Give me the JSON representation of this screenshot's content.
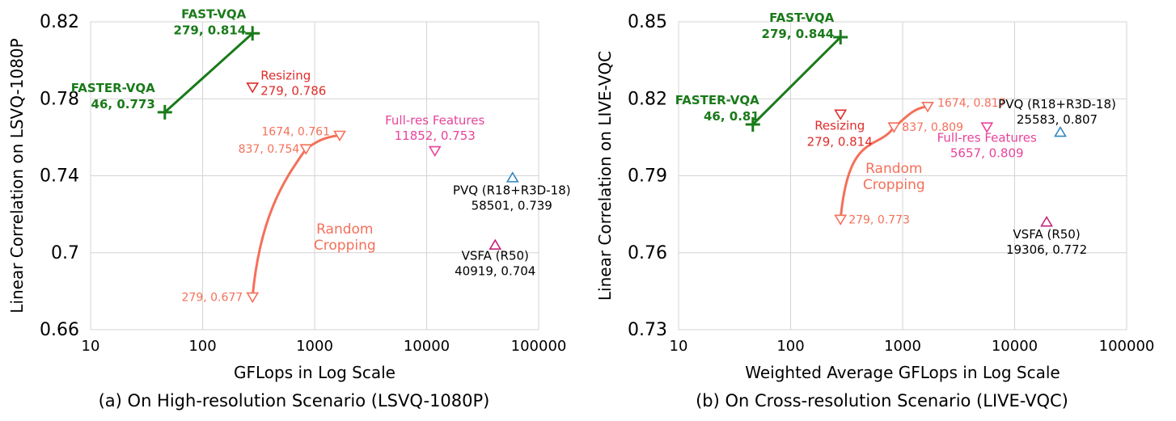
{
  "chart_data": [
    {
      "type": "scatter",
      "caption": "(a) On High-resolution Scenario (LSVQ-1080P)",
      "xlabel": "GFLops in Log Scale",
      "ylabel": "Linear Correlation on LSVQ-1080P",
      "x_scale": "log",
      "xlim": [
        10,
        100000
      ],
      "ylim": [
        0.66,
        0.82
      ],
      "x_ticks": [
        "10",
        "100",
        "1000",
        "10000",
        "100000"
      ],
      "y_ticks": [
        "0.82",
        "0.78",
        "0.74",
        "0.7",
        "0.66"
      ],
      "grid": true,
      "colors": {
        "fast": "#1a7a1a",
        "resizing": "#e02b2b",
        "cropping": "#f4705a",
        "fullres": "#e8439a",
        "pvq": "#2e86c1",
        "vsfa": "#c2247a"
      },
      "series": [
        {
          "name_lines": [
            "FAST-VQA",
            "279, 0.814"
          ],
          "color_key": "fast",
          "marker": "plus",
          "points": [
            {
              "x": 279,
              "y": 0.814,
              "label": "279, 0.814"
            }
          ]
        },
        {
          "name_lines": [
            "FASTER-VQA",
            "46, 0.773"
          ],
          "color_key": "fast",
          "marker": "plus",
          "points": [
            {
              "x": 46,
              "y": 0.773,
              "label": "46, 0.773"
            }
          ]
        },
        {
          "name_lines": [
            "Resizing",
            "279, 0.786"
          ],
          "color_key": "resizing",
          "marker": "tri-down",
          "points": [
            {
              "x": 279,
              "y": 0.786
            }
          ]
        },
        {
          "name_lines": [
            "Random",
            "Cropping"
          ],
          "color_key": "cropping",
          "marker": "tri-down",
          "points": [
            {
              "x": 279,
              "y": 0.677,
              "label": "279, 0.677"
            },
            {
              "x": 837,
              "y": 0.754,
              "label": "837, 0.754"
            },
            {
              "x": 1674,
              "y": 0.761,
              "label": "1674, 0.761"
            }
          ]
        },
        {
          "name_lines": [
            "Full-res Features",
            "11852, 0.753"
          ],
          "color_key": "fullres",
          "marker": "tri-down",
          "points": [
            {
              "x": 11852,
              "y": 0.753
            }
          ]
        },
        {
          "name_lines": [
            "PVQ (R18+R3D-18)",
            "58501, 0.739"
          ],
          "color_key": "pvq",
          "marker": "tri-up",
          "points": [
            {
              "x": 58501,
              "y": 0.739
            }
          ]
        },
        {
          "name_lines": [
            "VSFA (R50)",
            "40919, 0.704"
          ],
          "color_key": "vsfa",
          "marker": "tri-up",
          "points": [
            {
              "x": 40919,
              "y": 0.704
            }
          ]
        }
      ],
      "connector": {
        "from_x": 46,
        "from_y": 0.773,
        "to_x": 279,
        "to_y": 0.814
      }
    },
    {
      "type": "scatter",
      "caption": "(b) On Cross-resolution Scenario (LIVE-VQC)",
      "xlabel": "Weighted Average GFLops in Log Scale",
      "ylabel": "Linear Correlation on LIVE-VQC",
      "x_scale": "log",
      "xlim": [
        10,
        100000
      ],
      "ylim": [
        0.73,
        0.85
      ],
      "x_ticks": [
        "10",
        "100",
        "1000",
        "10000",
        "100000"
      ],
      "y_ticks": [
        "0.85",
        "0.82",
        "0.79",
        "0.76",
        "0.73"
      ],
      "grid": true,
      "colors": {
        "fast": "#1a7a1a",
        "resizing": "#e02b2b",
        "cropping": "#f4705a",
        "fullres": "#e8439a",
        "pvq": "#2e86c1",
        "vsfa": "#c2247a"
      },
      "series": [
        {
          "name_lines": [
            "FAST-VQA",
            "279, 0.844"
          ],
          "color_key": "fast",
          "marker": "plus",
          "points": [
            {
              "x": 279,
              "y": 0.844
            }
          ]
        },
        {
          "name_lines": [
            "FASTER-VQA",
            "46, 0.81"
          ],
          "color_key": "fast",
          "marker": "plus",
          "points": [
            {
              "x": 46,
              "y": 0.81
            }
          ]
        },
        {
          "name_lines": [
            "Resizing",
            "279, 0.814"
          ],
          "color_key": "resizing",
          "marker": "tri-down",
          "points": [
            {
              "x": 279,
              "y": 0.814
            }
          ]
        },
        {
          "name_lines": [
            "Random",
            "Cropping"
          ],
          "color_key": "cropping",
          "marker": "tri-down",
          "points": [
            {
              "x": 279,
              "y": 0.773,
              "label": "279, 0.773"
            },
            {
              "x": 837,
              "y": 0.809,
              "label": "837, 0.809"
            },
            {
              "x": 1674,
              "y": 0.817,
              "label": "1674, 0.817"
            }
          ]
        },
        {
          "name_lines": [
            "Full-res Features",
            "5657, 0.809"
          ],
          "color_key": "fullres",
          "marker": "tri-down",
          "points": [
            {
              "x": 5657,
              "y": 0.809
            }
          ]
        },
        {
          "name_lines": [
            "PVQ (R18+R3D-18)",
            "25583, 0.807"
          ],
          "color_key": "pvq",
          "marker": "tri-up",
          "points": [
            {
              "x": 25583,
              "y": 0.807
            }
          ]
        },
        {
          "name_lines": [
            "VSFA (R50)",
            "19306, 0.772"
          ],
          "color_key": "vsfa",
          "marker": "tri-up",
          "points": [
            {
              "x": 19306,
              "y": 0.772
            }
          ]
        }
      ],
      "connector": {
        "from_x": 46,
        "from_y": 0.81,
        "to_x": 279,
        "to_y": 0.844
      }
    }
  ]
}
